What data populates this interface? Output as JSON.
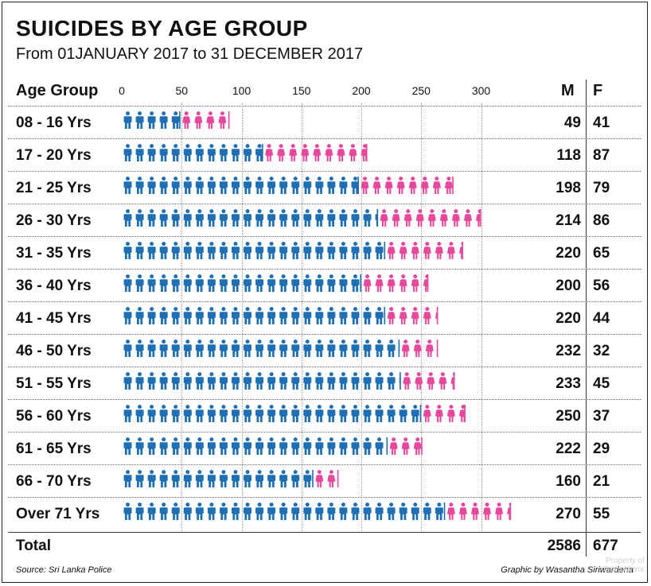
{
  "title": "SUICIDES BY AGE GROUP",
  "subtitle": "From 01JANUARY 2017 to 31 DECEMBER 2017",
  "source": "Source: Sri Lanka Police",
  "credit": "Graphic by Wasantha Siriwardena",
  "watermark": [
    "Property of",
    "Daily Mirror"
  ],
  "colors": {
    "male": "#1f6fb5",
    "female": "#e8489b"
  },
  "icon_names": {
    "male": "male-person-icon",
    "female": "female-person-icon"
  },
  "chart_data": {
    "type": "bar",
    "orientation": "horizontal",
    "stacked": true,
    "category_header": "Age Group",
    "categories": [
      "08 - 16 Yrs",
      "17 - 20 Yrs",
      "21 - 25 Yrs",
      "26 - 30 Yrs",
      "31 - 35 Yrs",
      "36 - 40 Yrs",
      "41 - 45 Yrs",
      "46 - 50 Yrs",
      "51 - 55 Yrs",
      "56 - 60 Yrs",
      "61 - 65 Yrs",
      "66 - 70 Yrs",
      "Over 71 Yrs"
    ],
    "series": [
      {
        "name": "M",
        "values": [
          49,
          118,
          198,
          214,
          220,
          200,
          220,
          232,
          233,
          250,
          222,
          160,
          270
        ]
      },
      {
        "name": "F",
        "values": [
          41,
          87,
          79,
          86,
          65,
          56,
          44,
          32,
          45,
          37,
          29,
          21,
          55
        ]
      }
    ],
    "x_ticks": [
      0,
      50,
      100,
      150,
      200,
      250,
      300
    ],
    "xlim": [
      0,
      350
    ],
    "total_label": "Total",
    "totals": {
      "M": 2586,
      "F": 677
    }
  }
}
